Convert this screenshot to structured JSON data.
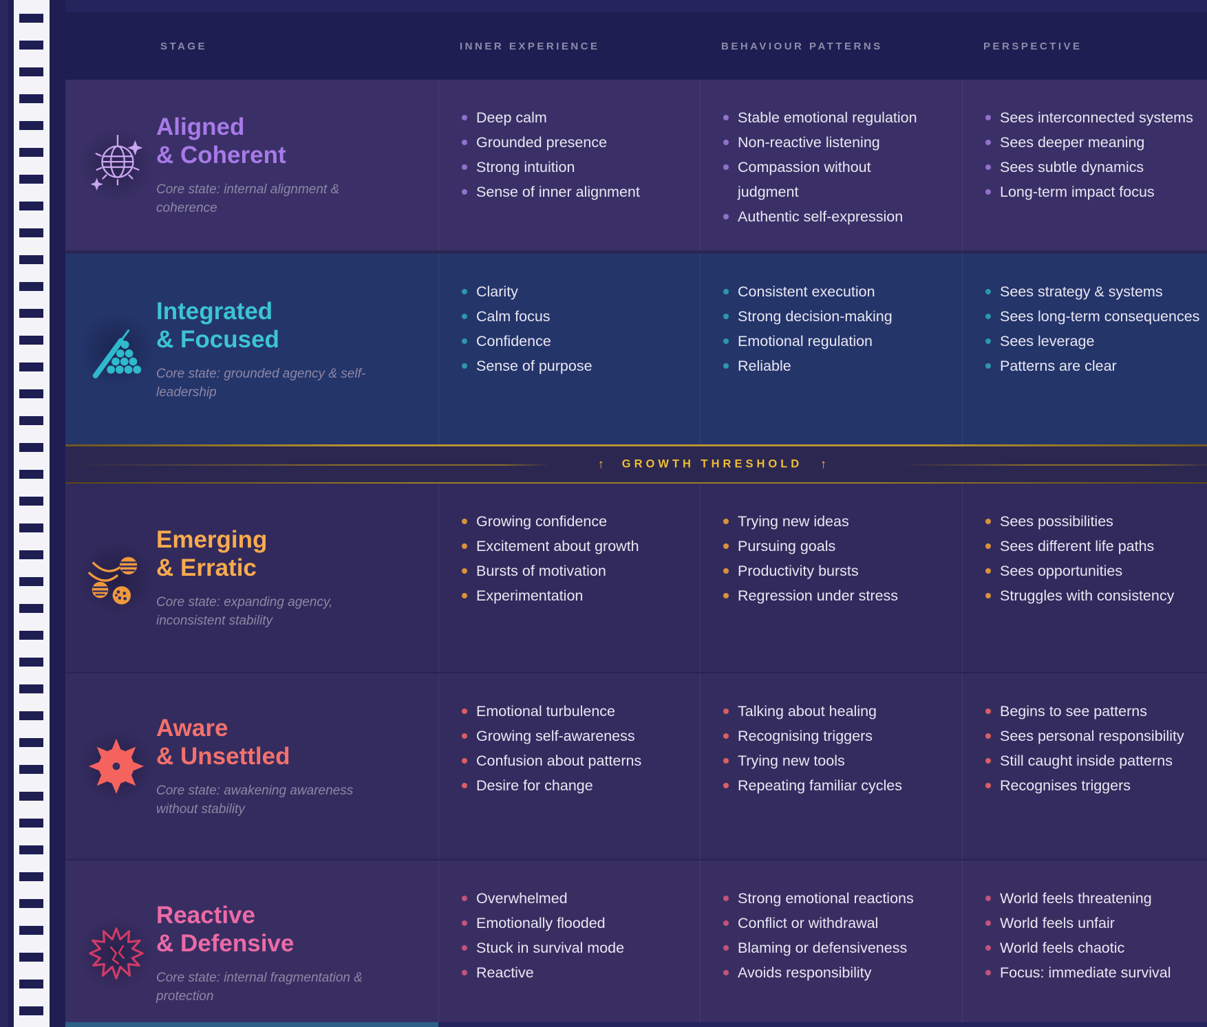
{
  "page": {
    "columns": [
      "STAGE",
      "INNER EXPERIENCE",
      "BEHAVIOUR PATTERNS",
      "PERSPECTIVE"
    ],
    "threshold": {
      "label": "GROWTH THRESHOLD",
      "arrow_left": "↑",
      "arrow_right": "↑"
    },
    "rows": [
      {
        "id": "aligned-coherent",
        "title": [
          "Aligned",
          "& Coherent"
        ],
        "core_state": "Core state: internal alignment & coherence",
        "icon": "disco-ball-icon",
        "accent": "#a87ae8",
        "icon_color": "#c9a6f0",
        "dot": "#9071cc",
        "bg": "#3a3067",
        "inner_experience": [
          "Deep calm",
          "Grounded presence",
          "Strong intuition",
          "Sense of inner alignment"
        ],
        "behaviour_patterns": [
          "Stable emotional regulation",
          "Non-reactive listening",
          "Compassion without\njudgment",
          "Authentic self-expression"
        ],
        "perspective": [
          "Sees interconnected systems",
          "Sees deeper meaning",
          "Sees subtle dynamics",
          "Long-term impact focus"
        ]
      },
      {
        "id": "integrated-focused",
        "title": [
          "Integrated",
          "& Focused"
        ],
        "core_state": "Core state: grounded agency & self-leadership",
        "icon": "billiards-icon",
        "accent": "#3cc4d4",
        "icon_color": "#2fb9cc",
        "dot": "#2f97ad",
        "bg": "#24356a",
        "inner_experience": [
          "Clarity",
          "Calm focus",
          "Confidence",
          "Sense of purpose"
        ],
        "behaviour_patterns": [
          "Consistent execution",
          "Strong decision-making",
          "Emotional regulation",
          "Reliable"
        ],
        "perspective": [
          "Sees strategy & systems",
          "Sees long-term consequences",
          "Sees leverage",
          "Patterns are clear"
        ]
      },
      {
        "id": "emerging-erratic",
        "title": [
          "Emerging",
          "& Erratic"
        ],
        "core_state": "Core state: expanding agency, inconsistent stability",
        "icon": "bouncing-balls-icon",
        "accent": "#f8ab4e",
        "icon_color": "#f0993c",
        "dot": "#d9913c",
        "bg": "#322a5c",
        "inner_experience": [
          "Growing confidence",
          "Excitement about growth",
          "Bursts of motivation",
          "Experimentation"
        ],
        "behaviour_patterns": [
          "Trying new ideas",
          "Pursuing goals",
          "Productivity bursts",
          "Regression under stress"
        ],
        "perspective": [
          "Sees possibilities",
          "Sees different life paths",
          "Sees opportunities",
          "Struggles with consistency"
        ]
      },
      {
        "id": "aware-unsettled",
        "title": [
          "Aware",
          "& Unsettled"
        ],
        "core_state": "Core state: awakening awareness without stability",
        "icon": "mine-icon",
        "accent": "#f4716c",
        "icon_color": "#f4635e",
        "dot": "#d95f63",
        "bg": "#342c5f",
        "inner_experience": [
          "Emotional turbulence",
          "Growing self-awareness",
          "Confusion about patterns",
          "Desire for change"
        ],
        "behaviour_patterns": [
          "Talking about healing",
          "Recognising triggers",
          "Trying new tools",
          "Repeating familiar cycles"
        ],
        "perspective": [
          "Begins to see patterns",
          "Sees personal responsibility",
          "Still caught inside patterns",
          "Recognises triggers"
        ]
      },
      {
        "id": "reactive-defensive",
        "title": [
          "Reactive",
          "& Defensive"
        ],
        "core_state": "Core state: internal fragmentation & protection",
        "icon": "virus-icon",
        "accent": "#ec6aa6",
        "icon_color": "#d23b66",
        "dot": "#c2537d",
        "bg": "#392e62",
        "inner_experience": [
          "Overwhelmed",
          "Emotionally flooded",
          "Stuck in survival mode",
          "Reactive"
        ],
        "behaviour_patterns": [
          "Strong emotional reactions",
          "Conflict or withdrawal",
          "Blaming or defensiveness",
          "Avoids responsibility"
        ],
        "perspective": [
          "World feels threatening",
          "World feels unfair",
          "World feels chaotic",
          "Focus: immediate survival"
        ]
      }
    ]
  },
  "colors": {
    "page_bg": "#24245c",
    "sidebar_bg": "#1e1e53",
    "ladder": "#f4f3f7",
    "header_bg": "#1e1e52",
    "header_text": "#8c8cab",
    "divider": "rgba(255,255,255,0.07)",
    "bullet_text": "#e9e7f2",
    "core_state_text": "#8d87a6",
    "gold_line": "#b8932f",
    "threshold_text": "#eebe35",
    "threshold_band_bg": "#2c2750",
    "bottom_strip": "#2d6086"
  }
}
